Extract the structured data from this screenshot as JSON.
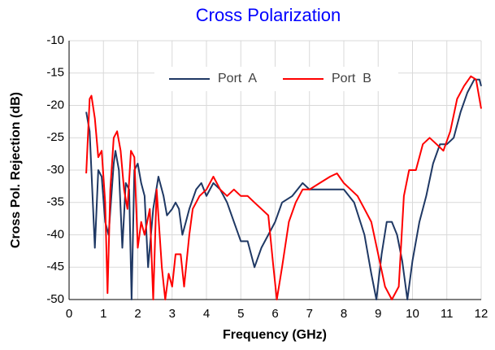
{
  "chart_data": {
    "type": "line",
    "title": "Cross Polarization",
    "xlabel": "Frequency  (GHz)",
    "ylabel": "Cross Pol. Rejection  (dB)",
    "xlim": [
      0,
      12
    ],
    "xticks": [
      0,
      1,
      2,
      3,
      4,
      5,
      6,
      7,
      8,
      9,
      10,
      11,
      12
    ],
    "ylim": [
      -50,
      -10
    ],
    "yticks": [
      -50,
      -45,
      -40,
      -35,
      -30,
      -25,
      -20,
      -15,
      -10
    ],
    "grid": true,
    "legend": "top",
    "series": [
      {
        "name": "Port  A",
        "color": "#1f3864",
        "x": [
          0.5,
          0.6,
          0.75,
          0.85,
          0.95,
          1.05,
          1.15,
          1.3,
          1.35,
          1.45,
          1.55,
          1.65,
          1.75,
          1.82,
          1.9,
          2.0,
          2.1,
          2.2,
          2.3,
          2.45,
          2.6,
          2.75,
          2.85,
          3.0,
          3.1,
          3.2,
          3.3,
          3.4,
          3.5,
          3.7,
          3.85,
          4.0,
          4.2,
          4.4,
          4.6,
          4.8,
          5.0,
          5.2,
          5.4,
          5.6,
          5.8,
          6.0,
          6.2,
          6.5,
          6.8,
          7.0,
          7.5,
          8.0,
          8.3,
          8.6,
          8.8,
          8.95,
          9.1,
          9.25,
          9.4,
          9.55,
          9.7,
          9.85,
          10.0,
          10.2,
          10.4,
          10.6,
          10.8,
          11.0,
          11.2,
          11.4,
          11.6,
          11.8,
          11.95,
          12.0
        ],
        "values": [
          -21,
          -24,
          -42,
          -30,
          -31,
          -38,
          -40,
          -29,
          -27,
          -30,
          -42,
          -32,
          -33,
          -50,
          -30,
          -29,
          -32,
          -34,
          -45,
          -36,
          -31,
          -34,
          -37,
          -36,
          -35,
          -36,
          -40,
          -38,
          -36,
          -33,
          -32,
          -34,
          -32,
          -33,
          -35,
          -38,
          -41,
          -41,
          -45,
          -42,
          -40,
          -38,
          -35,
          -34,
          -32,
          -33,
          -33,
          -33,
          -35,
          -40,
          -46,
          -50,
          -43,
          -38,
          -38,
          -40,
          -44,
          -50,
          -44,
          -38,
          -34,
          -29,
          -26,
          -26,
          -25,
          -21,
          -18,
          -16,
          -16,
          -17
        ]
      },
      {
        "name": "Port  B",
        "color": "#ff0000",
        "x": [
          0.5,
          0.6,
          0.65,
          0.75,
          0.85,
          0.95,
          1.05,
          1.12,
          1.2,
          1.3,
          1.4,
          1.5,
          1.6,
          1.7,
          1.8,
          1.9,
          2.0,
          2.1,
          2.2,
          2.35,
          2.45,
          2.55,
          2.7,
          2.8,
          2.9,
          3.0,
          3.1,
          3.25,
          3.35,
          3.5,
          3.6,
          3.8,
          4.0,
          4.2,
          4.4,
          4.6,
          4.8,
          5.0,
          5.2,
          5.4,
          5.6,
          5.8,
          5.95,
          6.05,
          6.2,
          6.4,
          6.6,
          6.8,
          7.0,
          7.3,
          7.6,
          7.8,
          8.0,
          8.2,
          8.4,
          8.6,
          8.8,
          9.0,
          9.2,
          9.4,
          9.6,
          9.75,
          9.9,
          10.1,
          10.3,
          10.5,
          10.7,
          10.9,
          11.1,
          11.3,
          11.5,
          11.7,
          11.85,
          12.0
        ],
        "values": [
          -30.5,
          -19,
          -18.5,
          -22,
          -28,
          -27,
          -35,
          -49,
          -33,
          -25,
          -24,
          -27,
          -33,
          -36,
          -27,
          -28,
          -42,
          -38,
          -40,
          -36,
          -50,
          -33,
          -45,
          -50,
          -46,
          -48,
          -43,
          -43,
          -48,
          -40,
          -36,
          -34,
          -33,
          -31,
          -33,
          -34,
          -33,
          -34,
          -34,
          -35,
          -36,
          -37,
          -45,
          -50,
          -45,
          -38,
          -35,
          -33,
          -33,
          -32,
          -31,
          -30.5,
          -32,
          -33,
          -34,
          -36,
          -38,
          -43,
          -48,
          -50,
          -48,
          -34,
          -30,
          -30,
          -26,
          -25,
          -26,
          -27,
          -24,
          -19,
          -17,
          -15.5,
          -16,
          -20.5
        ]
      }
    ]
  }
}
